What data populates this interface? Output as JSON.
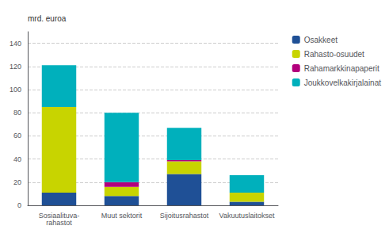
{
  "chart_data": {
    "type": "bar",
    "stacked": true,
    "categories": [
      "Sosiaalituva-\nrahastot",
      "Muut sektorit",
      "Sijoitusrahastot",
      "Vakuutuslaitokset"
    ],
    "series": [
      {
        "name": "Osakkeet",
        "color": "#1f5096",
        "values": [
          11,
          8,
          27,
          3
        ]
      },
      {
        "name": "Rahasto-osuudet",
        "color": "#c8d400",
        "values": [
          74,
          8,
          11,
          8
        ]
      },
      {
        "name": "Rahamarkkinapaperit",
        "color": "#b3007c",
        "values": [
          0,
          4,
          1,
          0
        ]
      },
      {
        "name": "Joukkovelkakirjalainat",
        "color": "#00b0bc",
        "values": [
          36,
          60,
          28,
          15
        ]
      }
    ],
    "ylabel": "mrd. euroa",
    "ylim": [
      0,
      150
    ],
    "yticks": [
      0,
      20,
      40,
      60,
      80,
      100,
      120,
      140
    ],
    "grid": true,
    "legend": "upper right"
  }
}
